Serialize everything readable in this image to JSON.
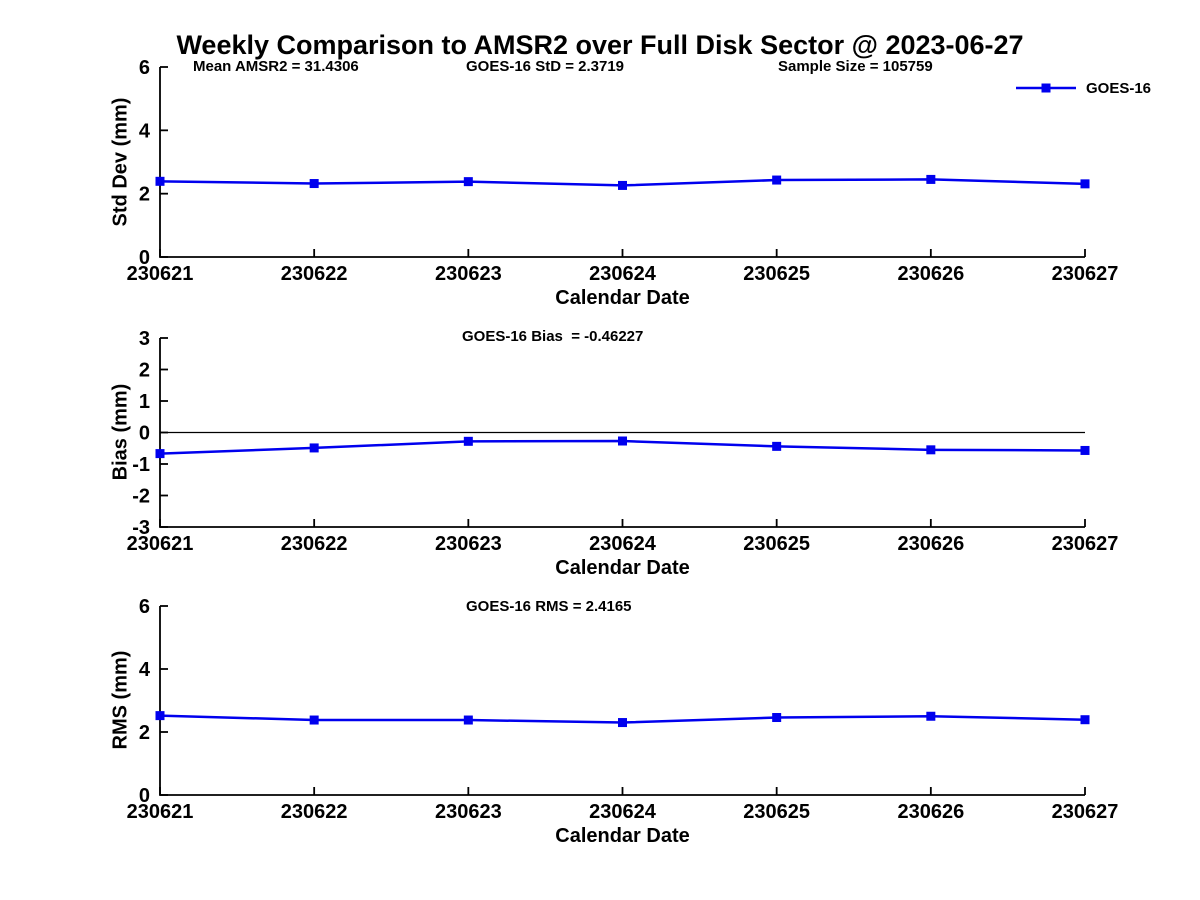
{
  "title": "Weekly Comparison to AMSR2 over Full Disk Sector @ 2023-06-27",
  "legend": {
    "label": "GOES-16"
  },
  "colors": {
    "line": "#0000EE",
    "axis": "#000000",
    "text": "#000000",
    "background": "#FFFFFF"
  },
  "chart_data": [
    {
      "type": "line",
      "name": "std-dev",
      "annotations": [
        "Mean AMSR2 = 31.4306",
        "GOES-16 StD = 2.3719",
        "Sample Size = 105759"
      ],
      "categories": [
        "230621",
        "230622",
        "230623",
        "230624",
        "230625",
        "230626",
        "230627"
      ],
      "series": [
        {
          "name": "GOES-16",
          "values": [
            2.39,
            2.32,
            2.38,
            2.26,
            2.43,
            2.45,
            2.31
          ]
        }
      ],
      "xlabel": "Calendar Date",
      "ylabel": "Std Dev (mm)",
      "ylim": [
        0,
        6
      ],
      "yticks": [
        "0",
        "2",
        "4",
        "6"
      ],
      "grid": false,
      "legend_position": "top-right"
    },
    {
      "type": "line",
      "name": "bias",
      "title": "GOES-16 Bias  = -0.46227",
      "categories": [
        "230621",
        "230622",
        "230623",
        "230624",
        "230625",
        "230626",
        "230627"
      ],
      "series": [
        {
          "name": "GOES-16",
          "values": [
            -0.67,
            -0.49,
            -0.28,
            -0.27,
            -0.44,
            -0.55,
            -0.57
          ]
        }
      ],
      "xlabel": "Calendar Date",
      "ylabel": "Bias (mm)",
      "ylim": [
        -3,
        3
      ],
      "yticks": [
        "-3",
        "-2",
        "-1",
        "0",
        "1",
        "2",
        "3"
      ],
      "zero_line": true,
      "grid": false
    },
    {
      "type": "line",
      "name": "rms",
      "title": "GOES-16 RMS = 2.4165",
      "categories": [
        "230621",
        "230622",
        "230623",
        "230624",
        "230625",
        "230626",
        "230627"
      ],
      "series": [
        {
          "name": "GOES-16",
          "values": [
            2.52,
            2.38,
            2.38,
            2.3,
            2.46,
            2.5,
            2.39
          ]
        }
      ],
      "xlabel": "Calendar Date",
      "ylabel": "RMS (mm)",
      "ylim": [
        0,
        6
      ],
      "yticks": [
        "0",
        "2",
        "4",
        "6"
      ],
      "grid": false
    }
  ]
}
